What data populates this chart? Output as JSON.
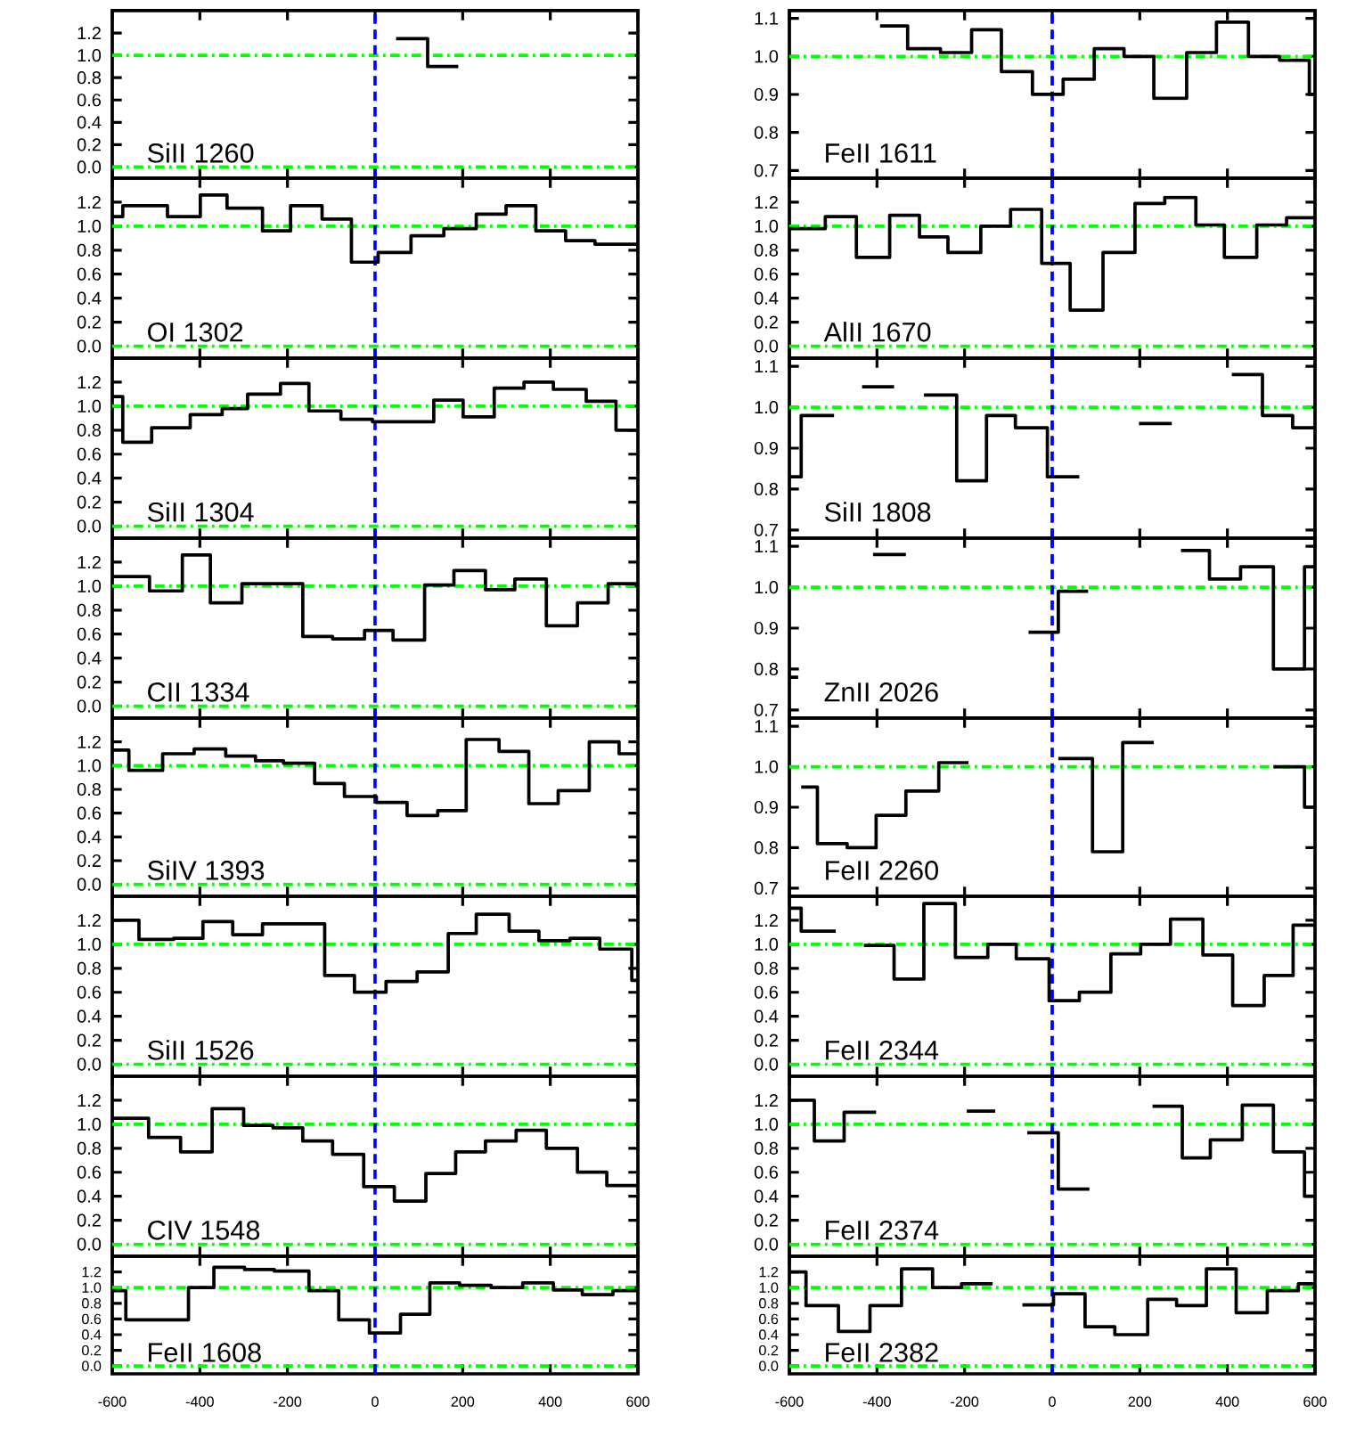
{
  "chart_data": [
    {
      "type": "step",
      "annotations": [
        "SiII 1260"
      ],
      "color": "#000000",
      "x": [
        48,
        120,
        190
      ],
      "values": [
        1.15,
        0.9,
        0.9
      ],
      "xlim": [
        -600,
        600
      ],
      "ylim": [
        -0.1,
        1.4
      ],
      "xticks": [
        -600,
        -400,
        -200,
        0,
        200,
        400,
        600
      ],
      "yticks": [
        {
          "value": 0,
          "label": "0.0"
        },
        {
          "value": 0.2,
          "label": "0.2"
        },
        {
          "value": 0.4,
          "label": "0.4"
        },
        {
          "value": 0.6,
          "label": "0.6"
        },
        {
          "value": 0.8,
          "label": "0.8"
        },
        {
          "value": 1.0,
          "label": "1.0"
        },
        {
          "value": 1.2,
          "label": "1.2"
        }
      ],
      "tick_labels": "y",
      "ref_lines": [
        {
          "axis": "y",
          "value": 1.0,
          "color": "#00ff00",
          "line_style": "dashdot"
        },
        {
          "axis": "y",
          "value": 0.0,
          "color": "#00ff00",
          "line_style": "dashdot"
        },
        {
          "axis": "x",
          "value": 0,
          "color": "#0000ff",
          "line_style": "dashed"
        }
      ]
    },
    {
      "type": "step",
      "annotations": [
        "FeII 1611"
      ],
      "color": "#000000",
      "x": [
        -393,
        -330,
        -255,
        -184,
        -116,
        -45,
        25,
        96,
        164,
        232,
        307,
        375,
        448,
        519,
        587,
        600
      ],
      "values": [
        1.08,
        1.02,
        1.01,
        1.07,
        0.96,
        0.9,
        0.94,
        1.02,
        1.0,
        0.89,
        1.01,
        1.09,
        1.0,
        0.99,
        0.9,
        0.9
      ],
      "xlim": [
        -600,
        600
      ],
      "ylim": [
        0.68,
        1.12
      ],
      "xticks": [
        -600,
        -400,
        -200,
        0,
        200,
        400,
        600
      ],
      "yticks": [
        {
          "value": 0.7,
          "label": "0.7"
        },
        {
          "value": 0.8,
          "label": "0.8"
        },
        {
          "value": 0.9,
          "label": "0.9"
        },
        {
          "value": 1.0,
          "label": "1.0"
        },
        {
          "value": 1.1,
          "label": "1.1"
        }
      ],
      "tick_labels": "y",
      "ref_lines": [
        {
          "axis": "y",
          "value": 1.0,
          "color": "#00ff00",
          "line_style": "dashdot"
        },
        {
          "axis": "x",
          "value": 0,
          "color": "#0000ff",
          "line_style": "dashed"
        }
      ]
    },
    {
      "type": "step",
      "annotations": [
        "OI 1302"
      ],
      "color": "#000000",
      "x": [
        -600,
        -576,
        -474,
        -399,
        -338,
        -257,
        -193,
        -121,
        -54,
        7,
        82,
        157,
        231,
        299,
        367,
        435,
        502,
        600
      ],
      "values": [
        1.08,
        1.17,
        1.08,
        1.26,
        1.15,
        0.96,
        1.17,
        1.06,
        0.7,
        0.78,
        0.92,
        0.98,
        1.1,
        1.17,
        0.96,
        0.88,
        0.85,
        0.85
      ],
      "xlim": [
        -600,
        600
      ],
      "ylim": [
        -0.1,
        1.4
      ],
      "xticks": [
        -600,
        -400,
        -200,
        0,
        200,
        400,
        600
      ],
      "yticks": [
        {
          "value": 0,
          "label": "0.0"
        },
        {
          "value": 0.2,
          "label": "0.2"
        },
        {
          "value": 0.4,
          "label": "0.4"
        },
        {
          "value": 0.6,
          "label": "0.6"
        },
        {
          "value": 0.8,
          "label": "0.8"
        },
        {
          "value": 1.0,
          "label": "1.0"
        },
        {
          "value": 1.2,
          "label": "1.2"
        }
      ],
      "tick_labels": "y",
      "ref_lines": [
        {
          "axis": "y",
          "value": 1.0,
          "color": "#00ff00",
          "line_style": "dashdot"
        },
        {
          "axis": "y",
          "value": 0.0,
          "color": "#00ff00",
          "line_style": "dashdot"
        },
        {
          "axis": "x",
          "value": 0,
          "color": "#0000ff",
          "line_style": "dashed"
        }
      ]
    },
    {
      "type": "step",
      "annotations": [
        "AlII 1670"
      ],
      "color": "#000000",
      "x": [
        -600,
        -518,
        -447,
        -371,
        -303,
        -238,
        -163,
        -95,
        -24,
        41,
        116,
        189,
        257,
        328,
        393,
        467,
        535,
        600
      ],
      "values": [
        0.98,
        1.08,
        0.74,
        1.09,
        0.91,
        0.78,
        1.0,
        1.14,
        0.69,
        0.3,
        0.78,
        1.19,
        1.24,
        1.01,
        0.74,
        1.01,
        1.07,
        1.07
      ],
      "xlim": [
        -600,
        600
      ],
      "ylim": [
        -0.1,
        1.4
      ],
      "xticks": [
        -600,
        -400,
        -200,
        0,
        200,
        400,
        600
      ],
      "yticks": [
        {
          "value": 0,
          "label": "0.0"
        },
        {
          "value": 0.2,
          "label": "0.2"
        },
        {
          "value": 0.4,
          "label": "0.4"
        },
        {
          "value": 0.6,
          "label": "0.6"
        },
        {
          "value": 0.8,
          "label": "0.8"
        },
        {
          "value": 1.0,
          "label": "1.0"
        },
        {
          "value": 1.2,
          "label": "1.2"
        }
      ],
      "tick_labels": "y",
      "ref_lines": [
        {
          "axis": "y",
          "value": 1.0,
          "color": "#00ff00",
          "line_style": "dashdot"
        },
        {
          "axis": "y",
          "value": 0.0,
          "color": "#00ff00",
          "line_style": "dashdot"
        },
        {
          "axis": "x",
          "value": 0,
          "color": "#0000ff",
          "line_style": "dashed"
        }
      ]
    },
    {
      "type": "step",
      "annotations": [
        "SiII 1304"
      ],
      "color": "#000000",
      "x": [
        -600,
        -576,
        -510,
        -422,
        -349,
        -291,
        -216,
        -151,
        -78,
        -6,
        134,
        201,
        272,
        340,
        407,
        482,
        550,
        600
      ],
      "values": [
        1.08,
        0.7,
        0.82,
        0.93,
        0.98,
        1.1,
        1.19,
        0.96,
        0.89,
        0.87,
        1.05,
        0.91,
        1.15,
        1.2,
        1.14,
        1.04,
        0.8,
        0.8
      ],
      "xlim": [
        -600,
        600
      ],
      "ylim": [
        -0.1,
        1.4
      ],
      "xticks": [
        -600,
        -400,
        -200,
        0,
        200,
        400,
        600
      ],
      "yticks": [
        {
          "value": 0,
          "label": "0.0"
        },
        {
          "value": 0.2,
          "label": "0.2"
        },
        {
          "value": 0.4,
          "label": "0.4"
        },
        {
          "value": 0.6,
          "label": "0.6"
        },
        {
          "value": 0.8,
          "label": "0.8"
        },
        {
          "value": 1.0,
          "label": "1.0"
        },
        {
          "value": 1.2,
          "label": "1.2"
        }
      ],
      "tick_labels": "y",
      "ref_lines": [
        {
          "axis": "y",
          "value": 1.0,
          "color": "#00ff00",
          "line_style": "dashdot"
        },
        {
          "axis": "y",
          "value": 0.0,
          "color": "#00ff00",
          "line_style": "dashdot"
        },
        {
          "axis": "x",
          "value": 0,
          "color": "#0000ff",
          "line_style": "dashed"
        }
      ]
    },
    {
      "type": "step",
      "annotations": [
        "SiII 1808"
      ],
      "color": "#000000",
      "x": [
        -600,
        -573,
        -498,
        -434,
        -361,
        -293,
        -218,
        -150,
        -84,
        -11,
        62,
        198,
        273,
        410,
        480,
        549,
        600
      ],
      "values": [
        0.83,
        0.98,
        null,
        1.05,
        null,
        1.03,
        0.82,
        0.98,
        0.95,
        0.83,
        null,
        0.96,
        null,
        1.08,
        0.98,
        0.95,
        0.95
      ],
      "xlim": [
        -600,
        600
      ],
      "ylim": [
        0.68,
        1.12
      ],
      "xticks": [
        -600,
        -400,
        -200,
        0,
        200,
        400,
        600
      ],
      "yticks": [
        {
          "value": 0.7,
          "label": "0.7"
        },
        {
          "value": 0.8,
          "label": "0.8"
        },
        {
          "value": 0.9,
          "label": "0.9"
        },
        {
          "value": 1.0,
          "label": "1.0"
        },
        {
          "value": 1.1,
          "label": "1.1"
        }
      ],
      "tick_labels": "y",
      "ref_lines": [
        {
          "axis": "y",
          "value": 1.0,
          "color": "#00ff00",
          "line_style": "dashdot"
        },
        {
          "axis": "x",
          "value": 0,
          "color": "#0000ff",
          "line_style": "dashed"
        }
      ]
    },
    {
      "type": "step",
      "annotations": [
        "CII 1334"
      ],
      "color": "#000000",
      "x": [
        -600,
        -515,
        -440,
        -376,
        -304,
        -165,
        -97,
        -24,
        41,
        113,
        180,
        252,
        319,
        391,
        462,
        532,
        600
      ],
      "values": [
        1.08,
        0.96,
        1.26,
        0.86,
        1.02,
        0.58,
        0.56,
        0.63,
        0.55,
        1.01,
        1.13,
        0.97,
        1.06,
        0.67,
        0.86,
        1.02,
        1.02
      ],
      "xlim": [
        -600,
        600
      ],
      "ylim": [
        -0.1,
        1.4
      ],
      "xticks": [
        -600,
        -400,
        -200,
        0,
        200,
        400,
        600
      ],
      "yticks": [
        {
          "value": 0,
          "label": "0.0"
        },
        {
          "value": 0.2,
          "label": "0.2"
        },
        {
          "value": 0.4,
          "label": "0.4"
        },
        {
          "value": 0.6,
          "label": "0.6"
        },
        {
          "value": 0.8,
          "label": "0.8"
        },
        {
          "value": 1.0,
          "label": "1.0"
        },
        {
          "value": 1.2,
          "label": "1.2"
        }
      ],
      "tick_labels": "y",
      "ref_lines": [
        {
          "axis": "y",
          "value": 1.0,
          "color": "#00ff00",
          "line_style": "dashdot"
        },
        {
          "axis": "y",
          "value": 0.0,
          "color": "#00ff00",
          "line_style": "dashdot"
        },
        {
          "axis": "x",
          "value": 0,
          "color": "#0000ff",
          "line_style": "dashed"
        }
      ]
    },
    {
      "type": "step",
      "annotations": [
        "ZnII 2026"
      ],
      "color": "#000000",
      "x": [
        -600,
        -580,
        -409,
        -334,
        -54,
        14,
        82,
        294,
        359,
        430,
        505,
        576,
        600
      ],
      "values": [
        0.78,
        null,
        1.08,
        null,
        0.89,
        0.99,
        null,
        1.09,
        1.02,
        1.05,
        0.8,
        1.05,
        1.05
      ],
      "xlim": [
        -600,
        600
      ],
      "ylim": [
        0.68,
        1.12
      ],
      "xticks": [
        -600,
        -400,
        -200,
        0,
        200,
        400,
        600
      ],
      "yticks": [
        {
          "value": 0.7,
          "label": "0.7"
        },
        {
          "value": 0.8,
          "label": "0.8"
        },
        {
          "value": 0.9,
          "label": "0.9"
        },
        {
          "value": 1.0,
          "label": "1.0"
        },
        {
          "value": 1.1,
          "label": "1.1"
        }
      ],
      "tick_labels": "y",
      "ref_lines": [
        {
          "axis": "y",
          "value": 1.0,
          "color": "#00ff00",
          "line_style": "dashdot"
        },
        {
          "axis": "x",
          "value": 0,
          "color": "#0000ff",
          "line_style": "dashed"
        }
      ]
    },
    {
      "type": "step",
      "annotations": [
        "SiIV 1393"
      ],
      "color": "#000000",
      "x": [
        -600,
        -562,
        -485,
        -413,
        -341,
        -273,
        -209,
        -138,
        -70,
        3,
        73,
        143,
        208,
        283,
        351,
        418,
        489,
        557,
        600
      ],
      "values": [
        1.13,
        0.96,
        1.1,
        1.14,
        1.08,
        1.04,
        1.02,
        0.85,
        0.74,
        0.69,
        0.58,
        0.62,
        1.22,
        1.12,
        0.68,
        0.79,
        1.2,
        1.1,
        1.1
      ],
      "xlim": [
        -600,
        600
      ],
      "ylim": [
        -0.1,
        1.4
      ],
      "xticks": [
        -600,
        -400,
        -200,
        0,
        200,
        400,
        600
      ],
      "yticks": [
        {
          "value": 0,
          "label": "0.0"
        },
        {
          "value": 0.2,
          "label": "0.2"
        },
        {
          "value": 0.4,
          "label": "0.4"
        },
        {
          "value": 0.6,
          "label": "0.6"
        },
        {
          "value": 0.8,
          "label": "0.8"
        },
        {
          "value": 1.0,
          "label": "1.0"
        },
        {
          "value": 1.2,
          "label": "1.2"
        }
      ],
      "tick_labels": "y",
      "ref_lines": [
        {
          "axis": "y",
          "value": 1.0,
          "color": "#00ff00",
          "line_style": "dashdot"
        },
        {
          "axis": "y",
          "value": 0.0,
          "color": "#00ff00",
          "line_style": "dashdot"
        },
        {
          "axis": "x",
          "value": 0,
          "color": "#0000ff",
          "line_style": "dashed"
        }
      ]
    },
    {
      "type": "step",
      "annotations": [
        "FeII 2260"
      ],
      "color": "#000000",
      "x": [
        -573,
        -536,
        -468,
        -402,
        -334,
        -259,
        -191,
        14,
        92,
        161,
        232,
        505,
        576,
        600
      ],
      "values": [
        0.95,
        0.81,
        0.8,
        0.88,
        0.94,
        1.01,
        null,
        1.02,
        0.79,
        1.06,
        null,
        1.0,
        0.9,
        0.9
      ],
      "xlim": [
        -600,
        600
      ],
      "ylim": [
        0.68,
        1.12
      ],
      "xticks": [
        -600,
        -400,
        -200,
        0,
        200,
        400,
        600
      ],
      "yticks": [
        {
          "value": 0.7,
          "label": "0.7"
        },
        {
          "value": 0.8,
          "label": "0.8"
        },
        {
          "value": 0.9,
          "label": "0.9"
        },
        {
          "value": 1.0,
          "label": "1.0"
        },
        {
          "value": 1.1,
          "label": "1.1"
        }
      ],
      "tick_labels": "y",
      "ref_lines": [
        {
          "axis": "y",
          "value": 1.0,
          "color": "#00ff00",
          "line_style": "dashdot"
        },
        {
          "axis": "x",
          "value": 0,
          "color": "#0000ff",
          "line_style": "dashed"
        }
      ]
    },
    {
      "type": "step",
      "annotations": [
        "SiII 1526"
      ],
      "color": "#000000",
      "x": [
        -600,
        -539,
        -460,
        -393,
        -325,
        -257,
        -115,
        -47,
        25,
        96,
        167,
        231,
        306,
        374,
        445,
        513,
        586,
        600
      ],
      "values": [
        1.2,
        1.04,
        1.05,
        1.19,
        1.08,
        1.17,
        0.74,
        0.6,
        0.69,
        0.77,
        1.09,
        1.25,
        1.11,
        1.03,
        1.05,
        0.96,
        0.7,
        0.7
      ],
      "xlim": [
        -600,
        600
      ],
      "ylim": [
        -0.1,
        1.4
      ],
      "xticks": [
        -600,
        -400,
        -200,
        0,
        200,
        400,
        600
      ],
      "yticks": [
        {
          "value": 0,
          "label": "0.0"
        },
        {
          "value": 0.2,
          "label": "0.2"
        },
        {
          "value": 0.4,
          "label": "0.4"
        },
        {
          "value": 0.6,
          "label": "0.6"
        },
        {
          "value": 0.8,
          "label": "0.8"
        },
        {
          "value": 1.0,
          "label": "1.0"
        },
        {
          "value": 1.2,
          "label": "1.2"
        }
      ],
      "tick_labels": "y",
      "ref_lines": [
        {
          "axis": "y",
          "value": 1.0,
          "color": "#00ff00",
          "line_style": "dashdot"
        },
        {
          "axis": "y",
          "value": 0.0,
          "color": "#00ff00",
          "line_style": "dashdot"
        },
        {
          "axis": "x",
          "value": 0,
          "color": "#0000ff",
          "line_style": "dashed"
        }
      ]
    },
    {
      "type": "step",
      "annotations": [
        "FeII 2344"
      ],
      "color": "#000000",
      "x": [
        -600,
        -573,
        -494,
        -430,
        -361,
        -293,
        -221,
        -147,
        -82,
        -7,
        62,
        134,
        202,
        270,
        344,
        412,
        484,
        550,
        600
      ],
      "values": [
        1.3,
        1.11,
        null,
        0.99,
        0.71,
        1.34,
        0.89,
        1.0,
        0.88,
        0.53,
        0.6,
        0.92,
        1.0,
        1.21,
        0.91,
        0.49,
        0.74,
        1.16,
        1.16
      ],
      "xlim": [
        -600,
        600
      ],
      "ylim": [
        -0.1,
        1.4
      ],
      "xticks": [
        -600,
        -400,
        -200,
        0,
        200,
        400,
        600
      ],
      "yticks": [
        {
          "value": 0,
          "label": "0.0"
        },
        {
          "value": 0.2,
          "label": "0.2"
        },
        {
          "value": 0.4,
          "label": "0.4"
        },
        {
          "value": 0.6,
          "label": "0.6"
        },
        {
          "value": 0.8,
          "label": "0.8"
        },
        {
          "value": 1.0,
          "label": "1.0"
        },
        {
          "value": 1.2,
          "label": "1.2"
        }
      ],
      "tick_labels": "y",
      "ref_lines": [
        {
          "axis": "y",
          "value": 1.0,
          "color": "#00ff00",
          "line_style": "dashdot"
        },
        {
          "axis": "y",
          "value": 0.0,
          "color": "#00ff00",
          "line_style": "dashdot"
        },
        {
          "axis": "x",
          "value": 0,
          "color": "#0000ff",
          "line_style": "dashed"
        }
      ]
    },
    {
      "type": "step",
      "annotations": [
        "CIV 1548"
      ],
      "color": "#000000",
      "x": [
        -600,
        -517,
        -444,
        -372,
        -300,
        -233,
        -165,
        -97,
        -26,
        44,
        116,
        184,
        252,
        322,
        391,
        462,
        529,
        600
      ],
      "values": [
        1.05,
        0.89,
        0.77,
        1.13,
        0.99,
        0.97,
        0.86,
        0.75,
        0.48,
        0.36,
        0.59,
        0.77,
        0.86,
        0.95,
        0.8,
        0.6,
        0.49,
        0.49
      ],
      "xlim": [
        -600,
        600
      ],
      "ylim": [
        -0.1,
        1.4
      ],
      "xticks": [
        -600,
        -400,
        -200,
        0,
        200,
        400,
        600
      ],
      "yticks": [
        {
          "value": 0,
          "label": "0.0"
        },
        {
          "value": 0.2,
          "label": "0.2"
        },
        {
          "value": 0.4,
          "label": "0.4"
        },
        {
          "value": 0.6,
          "label": "0.6"
        },
        {
          "value": 0.8,
          "label": "0.8"
        },
        {
          "value": 1.0,
          "label": "1.0"
        },
        {
          "value": 1.2,
          "label": "1.2"
        }
      ],
      "tick_labels": "y",
      "ref_lines": [
        {
          "axis": "y",
          "value": 1.0,
          "color": "#00ff00",
          "line_style": "dashdot"
        },
        {
          "axis": "y",
          "value": 0.0,
          "color": "#00ff00",
          "line_style": "dashdot"
        },
        {
          "axis": "x",
          "value": 0,
          "color": "#0000ff",
          "line_style": "dashed"
        }
      ]
    },
    {
      "type": "step",
      "annotations": [
        "FeII 2374"
      ],
      "color": "#000000",
      "x": [
        -600,
        -543,
        -475,
        -402,
        -195,
        -130,
        -57,
        14,
        85,
        229,
        297,
        361,
        434,
        505,
        576,
        600
      ],
      "values": [
        1.2,
        0.86,
        1.1,
        null,
        1.11,
        null,
        0.93,
        0.46,
        null,
        1.15,
        0.72,
        0.87,
        1.16,
        0.77,
        0.4,
        0.4
      ],
      "xlim": [
        -600,
        600
      ],
      "ylim": [
        -0.1,
        1.4
      ],
      "xticks": [
        -600,
        -400,
        -200,
        0,
        200,
        400,
        600
      ],
      "yticks": [
        {
          "value": 0,
          "label": "0.0"
        },
        {
          "value": 0.2,
          "label": "0.2"
        },
        {
          "value": 0.4,
          "label": "0.4"
        },
        {
          "value": 0.6,
          "label": "0.6"
        },
        {
          "value": 0.8,
          "label": "0.8"
        },
        {
          "value": 1.0,
          "label": "1.0"
        },
        {
          "value": 1.2,
          "label": "1.2"
        }
      ],
      "tick_labels": "y",
      "ref_lines": [
        {
          "axis": "y",
          "value": 1.0,
          "color": "#00ff00",
          "line_style": "dashdot"
        },
        {
          "axis": "y",
          "value": 0.0,
          "color": "#00ff00",
          "line_style": "dashdot"
        },
        {
          "axis": "x",
          "value": 0,
          "color": "#0000ff",
          "line_style": "dashed"
        }
      ]
    },
    {
      "type": "step",
      "annotations": [
        "FeII 1608"
      ],
      "color": "#000000",
      "x": [
        -600,
        -569,
        -426,
        -368,
        -298,
        -230,
        -151,
        -83,
        -13,
        58,
        125,
        193,
        265,
        337,
        407,
        473,
        543,
        600
      ],
      "values": [
        0.96,
        0.59,
        1.0,
        1.26,
        1.23,
        1.21,
        0.96,
        0.59,
        0.42,
        0.66,
        1.06,
        1.03,
        1.0,
        1.06,
        0.97,
        0.91,
        0.96,
        0.96
      ],
      "xlim": [
        -600,
        600
      ],
      "ylim": [
        -0.1,
        1.4
      ],
      "xticks": [
        -600,
        -400,
        -200,
        0,
        200,
        400,
        600
      ],
      "yticks": [
        {
          "value": 0,
          "label": "0.0"
        },
        {
          "value": 0.2,
          "label": "0.2"
        },
        {
          "value": 0.4,
          "label": "0.4"
        },
        {
          "value": 0.6,
          "label": "0.6"
        },
        {
          "value": 0.8,
          "label": "0.8"
        },
        {
          "value": 1.0,
          "label": "1.0"
        },
        {
          "value": 1.2,
          "label": "1.2"
        }
      ],
      "ref_lines": [
        {
          "axis": "y",
          "value": 1.0,
          "color": "#00ff00",
          "line_style": "dashdot"
        },
        {
          "axis": "y",
          "value": 0.0,
          "color": "#00ff00",
          "line_style": "dashdot"
        },
        {
          "axis": "x",
          "value": 0,
          "color": "#0000ff",
          "line_style": "dashed"
        }
      ]
    },
    {
      "type": "step",
      "annotations": [
        "FeII 2382"
      ],
      "color": "#000000",
      "x": [
        -600,
        -562,
        -488,
        -416,
        -344,
        -273,
        -207,
        -136,
        -68,
        3,
        75,
        143,
        218,
        284,
        352,
        420,
        491,
        562,
        600
      ],
      "values": [
        1.2,
        0.77,
        0.44,
        0.77,
        1.24,
        1.0,
        1.05,
        null,
        0.78,
        0.92,
        0.5,
        0.4,
        0.85,
        0.77,
        1.24,
        0.68,
        0.96,
        1.05,
        1.05
      ],
      "xlim": [
        -600,
        600
      ],
      "ylim": [
        -0.1,
        1.4
      ],
      "xticks": [
        -600,
        -400,
        -200,
        0,
        200,
        400,
        600
      ],
      "yticks": [
        {
          "value": 0,
          "label": "0.0"
        },
        {
          "value": 0.2,
          "label": "0.2"
        },
        {
          "value": 0.4,
          "label": "0.4"
        },
        {
          "value": 0.6,
          "label": "0.6"
        },
        {
          "value": 0.8,
          "label": "0.8"
        },
        {
          "value": 1.0,
          "label": "1.0"
        },
        {
          "value": 1.2,
          "label": "1.2"
        }
      ],
      "ref_lines": [
        {
          "axis": "y",
          "value": 1.0,
          "color": "#00ff00",
          "line_style": "dashdot"
        },
        {
          "axis": "y",
          "value": 0.0,
          "color": "#00ff00",
          "line_style": "dashdot"
        },
        {
          "axis": "x",
          "value": 0,
          "color": "#0000ff",
          "line_style": "dashed"
        }
      ]
    }
  ]
}
